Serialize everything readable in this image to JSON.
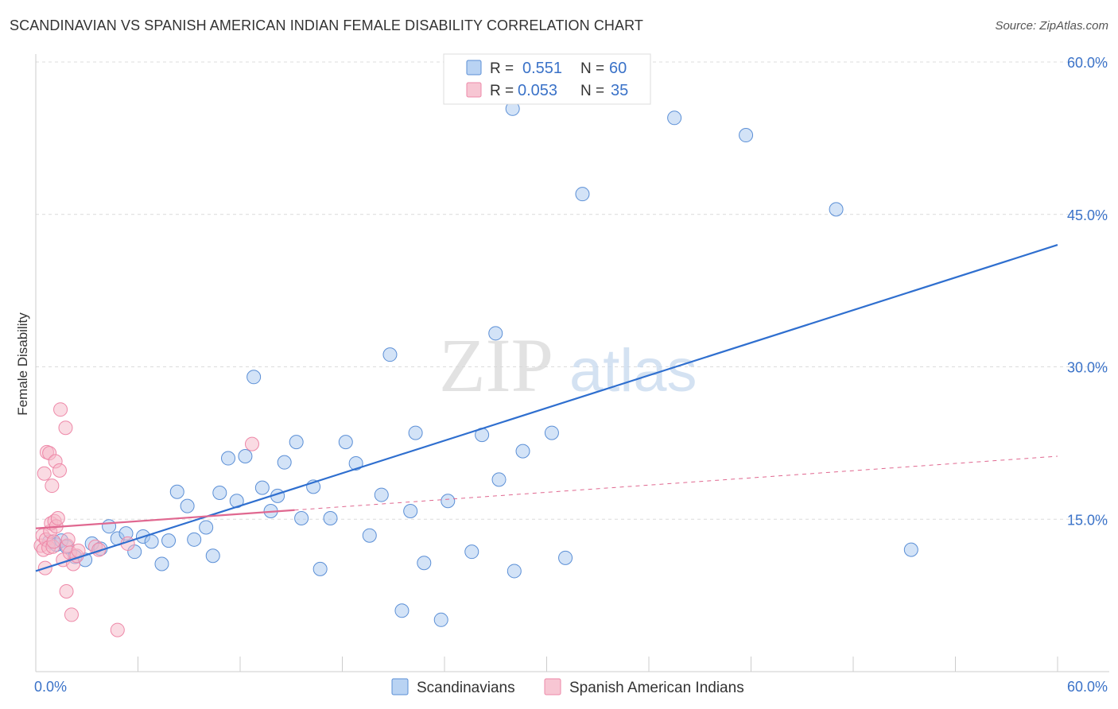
{
  "title": "SCANDINAVIAN VS SPANISH AMERICAN INDIAN FEMALE DISABILITY CORRELATION CHART",
  "source": "Source: ZipAtlas.com",
  "watermark": {
    "zip": "ZIP",
    "atlas": "atlas"
  },
  "legend_top": [
    {
      "r_label": "R =",
      "r_value": "0.551",
      "n_label": "N =",
      "n_value": "60",
      "color": "#a8c8f0"
    },
    {
      "r_label": "R =",
      "r_value": "0.053",
      "n_label": "N =",
      "n_value": "35",
      "color": "#f5b8c8"
    }
  ],
  "chart_data": {
    "type": "scatter",
    "title": "SCANDINAVIAN VS SPANISH AMERICAN INDIAN FEMALE DISABILITY CORRELATION CHART",
    "xlabel": "",
    "ylabel": "Female Disability",
    "xlim": [
      0,
      60
    ],
    "ylim": [
      0,
      60
    ],
    "x_tick_labels": [
      "0.0%",
      "60.0%"
    ],
    "y_ticks": [
      15,
      30,
      45,
      60
    ],
    "y_tick_labels": [
      "15.0%",
      "30.0%",
      "45.0%",
      "60.0%"
    ],
    "grid": true,
    "legend_position": "bottom",
    "series": [
      {
        "name": "Scandinavians",
        "color": "#5b8fd6",
        "fill": "#a8c8f0",
        "trend": {
          "x": [
            0,
            60
          ],
          "y": [
            9.9,
            42.0
          ],
          "style": "solid",
          "color": "#2f6fcf"
        },
        "points": [
          [
            0.8,
            12.8
          ],
          [
            1.2,
            12.5
          ],
          [
            1.5,
            12.9
          ],
          [
            1.8,
            12.3
          ],
          [
            2.3,
            11.3
          ],
          [
            2.9,
            11.0
          ],
          [
            3.3,
            12.6
          ],
          [
            3.8,
            12.1
          ],
          [
            4.3,
            14.3
          ],
          [
            4.8,
            13.1
          ],
          [
            5.3,
            13.6
          ],
          [
            5.8,
            11.8
          ],
          [
            6.3,
            13.3
          ],
          [
            6.8,
            12.8
          ],
          [
            7.4,
            10.6
          ],
          [
            7.8,
            12.9
          ],
          [
            8.3,
            17.7
          ],
          [
            8.9,
            16.3
          ],
          [
            9.3,
            13.0
          ],
          [
            10.0,
            14.2
          ],
          [
            10.4,
            11.4
          ],
          [
            10.8,
            17.6
          ],
          [
            11.3,
            21.0
          ],
          [
            11.8,
            16.8
          ],
          [
            12.3,
            21.2
          ],
          [
            12.8,
            29.0
          ],
          [
            13.3,
            18.1
          ],
          [
            13.8,
            15.8
          ],
          [
            14.2,
            17.3
          ],
          [
            14.6,
            20.6
          ],
          [
            15.3,
            22.6
          ],
          [
            15.6,
            15.1
          ],
          [
            16.3,
            18.2
          ],
          [
            16.7,
            10.1
          ],
          [
            17.3,
            15.1
          ],
          [
            18.2,
            22.6
          ],
          [
            18.8,
            20.5
          ],
          [
            19.6,
            13.4
          ],
          [
            20.3,
            17.4
          ],
          [
            20.8,
            31.2
          ],
          [
            21.5,
            6.0
          ],
          [
            22.0,
            15.8
          ],
          [
            22.3,
            23.5
          ],
          [
            22.8,
            10.7
          ],
          [
            23.8,
            5.1
          ],
          [
            24.2,
            16.8
          ],
          [
            25.6,
            11.8
          ],
          [
            26.2,
            23.3
          ],
          [
            27.0,
            33.3
          ],
          [
            27.2,
            18.9
          ],
          [
            28.0,
            55.4
          ],
          [
            28.1,
            9.9
          ],
          [
            28.6,
            21.7
          ],
          [
            30.3,
            23.5
          ],
          [
            31.1,
            11.2
          ],
          [
            32.1,
            47.0
          ],
          [
            37.5,
            54.5
          ],
          [
            41.7,
            52.8
          ],
          [
            47.0,
            45.5
          ],
          [
            51.4,
            12.0
          ]
        ]
      },
      {
        "name": "Spanish American Indians",
        "color": "#ee88a8",
        "fill": "#f5b8c8",
        "trend": {
          "x": [
            0,
            60
          ],
          "y": [
            14.1,
            21.2
          ],
          "style": "solid-then-dashed",
          "solid_until_x": 15.2,
          "color": "#e06890"
        },
        "points": [
          [
            0.3,
            12.4
          ],
          [
            0.4,
            13.4
          ],
          [
            0.45,
            12.0
          ],
          [
            0.5,
            19.5
          ],
          [
            0.55,
            10.2
          ],
          [
            0.6,
            13.0
          ],
          [
            0.65,
            21.6
          ],
          [
            0.75,
            12.2
          ],
          [
            0.8,
            21.5
          ],
          [
            0.85,
            13.8
          ],
          [
            0.9,
            14.6
          ],
          [
            0.95,
            18.3
          ],
          [
            1.0,
            12.3
          ],
          [
            1.05,
            12.8
          ],
          [
            1.1,
            14.8
          ],
          [
            1.15,
            20.7
          ],
          [
            1.2,
            14.3
          ],
          [
            1.3,
            15.1
          ],
          [
            1.4,
            19.8
          ],
          [
            1.45,
            25.8
          ],
          [
            1.6,
            11.0
          ],
          [
            1.75,
            24.0
          ],
          [
            1.8,
            7.9
          ],
          [
            1.85,
            12.4
          ],
          [
            1.9,
            13.0
          ],
          [
            2.0,
            11.7
          ],
          [
            2.1,
            5.6
          ],
          [
            2.2,
            10.6
          ],
          [
            2.4,
            11.4
          ],
          [
            2.5,
            11.9
          ],
          [
            3.5,
            12.3
          ],
          [
            3.7,
            12.0
          ],
          [
            4.8,
            4.1
          ],
          [
            5.4,
            12.6
          ],
          [
            12.7,
            22.4
          ]
        ]
      }
    ]
  }
}
